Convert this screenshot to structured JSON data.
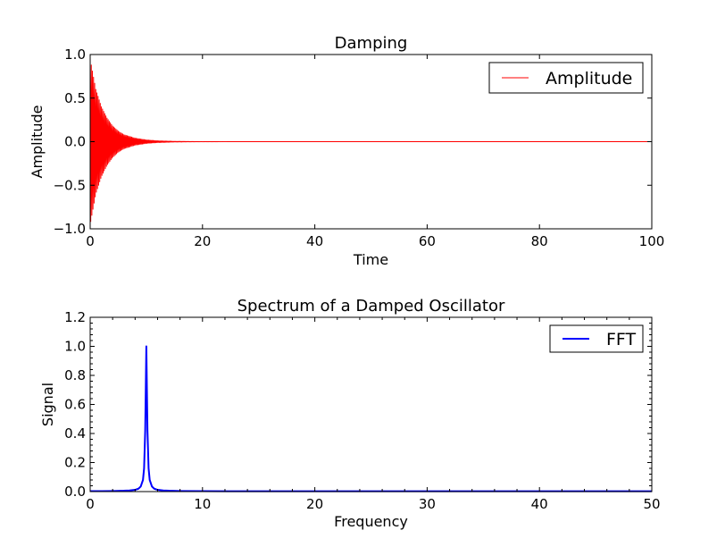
{
  "chart_data": [
    {
      "type": "line",
      "title": "Damping",
      "xlabel": "Time",
      "ylabel": "Amplitude",
      "xlim": [
        0,
        100
      ],
      "ylim": [
        -1.0,
        1.0
      ],
      "xticks": [
        "0",
        "20",
        "40",
        "60",
        "80",
        "100"
      ],
      "yticks": [
        "−1.0",
        "−0.5",
        "0.0",
        "0.5",
        "1.0"
      ],
      "grid": false,
      "legend_position": "top-right",
      "series": [
        {
          "name": "Amplitude",
          "color": "#ff0000",
          "style": "dense oscillation inside a decaying envelope",
          "envelope_x": [
            0,
            1,
            2,
            3,
            4,
            5,
            6,
            8,
            10,
            12,
            15,
            20,
            30,
            40,
            60,
            80,
            100
          ],
          "envelope_y": [
            0.95,
            0.6,
            0.4,
            0.27,
            0.18,
            0.12,
            0.08,
            0.04,
            0.02,
            0.01,
            0.004,
            0.001,
            0,
            0,
            0,
            0,
            0
          ]
        }
      ]
    },
    {
      "type": "line",
      "title": "Spectrum of a Damped Oscillator",
      "xlabel": "Frequency",
      "ylabel": "Signal",
      "xlim": [
        0,
        50
      ],
      "ylim": [
        0.0,
        1.2
      ],
      "xticks": [
        "0",
        "10",
        "20",
        "30",
        "40",
        "50"
      ],
      "yticks": [
        "0.0",
        "0.2",
        "0.4",
        "0.6",
        "0.8",
        "1.0",
        "1.2"
      ],
      "grid": false,
      "legend_position": "top-right",
      "series": [
        {
          "name": "FFT",
          "color": "#0000ff",
          "x": [
            0,
            1,
            2,
            3,
            3.5,
            4,
            4.3,
            4.5,
            4.7,
            4.8,
            4.9,
            4.95,
            5.0,
            5.05,
            5.1,
            5.2,
            5.3,
            5.5,
            5.7,
            6,
            6.5,
            7,
            8,
            10,
            15,
            20,
            30,
            40,
            50
          ],
          "y": [
            0.003,
            0.003,
            0.004,
            0.006,
            0.008,
            0.012,
            0.02,
            0.035,
            0.08,
            0.16,
            0.42,
            0.7,
            1.0,
            0.7,
            0.42,
            0.16,
            0.08,
            0.035,
            0.02,
            0.012,
            0.008,
            0.006,
            0.004,
            0.003,
            0.002,
            0.002,
            0.002,
            0.002,
            0.002
          ]
        }
      ]
    }
  ]
}
